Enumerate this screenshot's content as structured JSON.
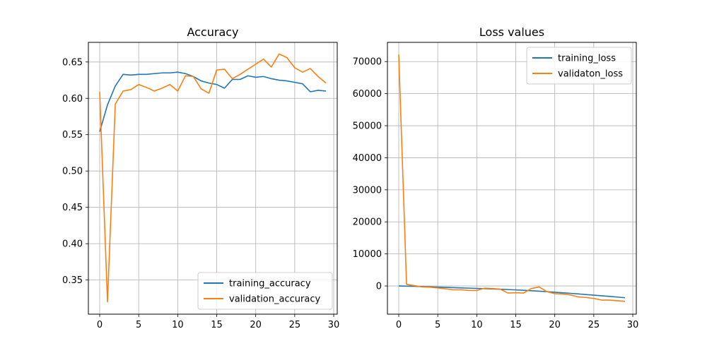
{
  "chart_data": [
    {
      "type": "line",
      "title": "Accuracy",
      "xlabel": "",
      "ylabel": "",
      "xlim": [
        -1.45,
        30.45
      ],
      "ylim": [
        0.303,
        0.677
      ],
      "xticks": [
        0,
        5,
        10,
        15,
        20,
        25,
        30
      ],
      "yticks": [
        0.35,
        0.4,
        0.45,
        0.5,
        0.55,
        0.6,
        0.65
      ],
      "ytick_labels": [
        "0.35",
        "0.40",
        "0.45",
        "0.50",
        "0.55",
        "0.60",
        "0.65"
      ],
      "grid": true,
      "legend_position": "lower-right",
      "x": [
        0,
        1,
        2,
        3,
        4,
        5,
        6,
        7,
        8,
        9,
        10,
        11,
        12,
        13,
        14,
        15,
        16,
        17,
        18,
        19,
        20,
        21,
        22,
        23,
        24,
        25,
        26,
        27,
        28,
        29
      ],
      "series": [
        {
          "name": "training_accuracy",
          "color": "#1f77b4",
          "values": [
            0.554,
            0.591,
            0.617,
            0.633,
            0.632,
            0.633,
            0.633,
            0.634,
            0.635,
            0.635,
            0.636,
            0.634,
            0.63,
            0.624,
            0.621,
            0.619,
            0.614,
            0.626,
            0.626,
            0.631,
            0.629,
            0.63,
            0.627,
            0.625,
            0.624,
            0.622,
            0.62,
            0.609,
            0.611,
            0.61
          ]
        },
        {
          "name": "validation_accuracy",
          "color": "#ff7f0e",
          "values": [
            0.609,
            0.32,
            0.592,
            0.61,
            0.612,
            0.619,
            0.615,
            0.61,
            0.614,
            0.619,
            0.61,
            0.631,
            0.63,
            0.613,
            0.607,
            0.639,
            0.64,
            0.627,
            0.633,
            0.64,
            0.647,
            0.654,
            0.643,
            0.661,
            0.656,
            0.642,
            0.636,
            0.641,
            0.63,
            0.621
          ]
        }
      ]
    },
    {
      "type": "line",
      "title": "Loss values",
      "xlabel": "",
      "ylabel": "",
      "xlim": [
        -1.45,
        30.45
      ],
      "ylim": [
        -8800,
        76000
      ],
      "xticks": [
        0,
        5,
        10,
        15,
        20,
        25,
        30
      ],
      "yticks": [
        0,
        10000,
        20000,
        30000,
        40000,
        50000,
        60000,
        70000
      ],
      "ytick_labels": [
        "0",
        "10000",
        "20000",
        "30000",
        "40000",
        "50000",
        "60000",
        "70000"
      ],
      "grid": true,
      "legend_position": "top-right",
      "x": [
        0,
        1,
        2,
        3,
        4,
        5,
        6,
        7,
        8,
        9,
        10,
        11,
        12,
        13,
        14,
        15,
        16,
        17,
        18,
        19,
        20,
        21,
        22,
        23,
        24,
        25,
        26,
        27,
        28,
        29
      ],
      "series": [
        {
          "name": "training_loss",
          "color": "#1f77b4",
          "values": [
            0,
            -50,
            -120,
            -200,
            -280,
            -360,
            -440,
            -520,
            -600,
            -680,
            -760,
            -840,
            -930,
            -1020,
            -1120,
            -1230,
            -1350,
            -1480,
            -1620,
            -1780,
            -1950,
            -2120,
            -2300,
            -2480,
            -2670,
            -2860,
            -3060,
            -3260,
            -3460,
            -3680
          ]
        },
        {
          "name": "validaton_loss",
          "color": "#ff7f0e",
          "values": [
            72200,
            500,
            100,
            -300,
            -400,
            -600,
            -900,
            -1200,
            -1200,
            -1400,
            -1400,
            -700,
            -800,
            -1000,
            -2200,
            -2100,
            -2200,
            -800,
            -300,
            -1800,
            -2400,
            -2500,
            -2800,
            -3400,
            -3600,
            -3900,
            -4400,
            -4400,
            -4600,
            -4800
          ]
        }
      ]
    }
  ]
}
